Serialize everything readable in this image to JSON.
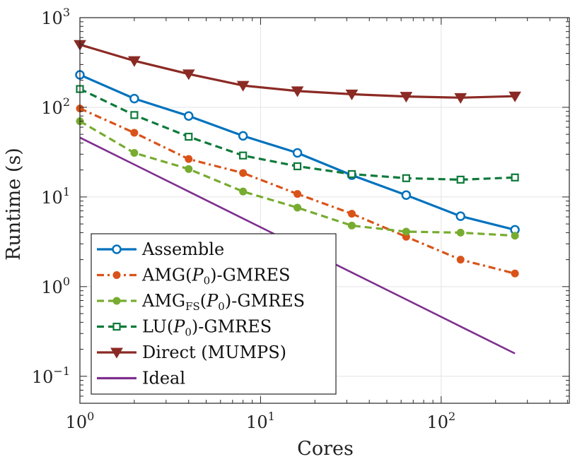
{
  "chart_data": {
    "type": "line",
    "xscale": "log",
    "yscale": "log",
    "xlabel": "Cores",
    "ylabel": "Runtime (s)",
    "xlim": [
      1,
      512
    ],
    "ylim": [
      0.05,
      1000
    ],
    "grid": true,
    "legend_position": "bottom-left",
    "x_ticks": [
      {
        "value": 1,
        "base": "10",
        "exp": "0"
      },
      {
        "value": 10,
        "base": "10",
        "exp": "1"
      },
      {
        "value": 100,
        "base": "10",
        "exp": "2"
      }
    ],
    "y_ticks": [
      {
        "value": 0.1,
        "base": "10",
        "exp": "−1"
      },
      {
        "value": 1,
        "base": "10",
        "exp": "0"
      },
      {
        "value": 10,
        "base": "10",
        "exp": "1"
      },
      {
        "value": 100,
        "base": "10",
        "exp": "2"
      },
      {
        "value": 1000,
        "base": "10",
        "exp": "3"
      }
    ],
    "x": [
      1,
      2,
      4,
      8,
      16,
      32,
      64,
      128,
      256
    ],
    "series": [
      {
        "name": "Assemble",
        "label_parts": [
          "Assemble"
        ],
        "color": "#0072BD",
        "dash": "solid",
        "marker": "circle-open",
        "values": [
          230,
          125,
          80,
          48,
          31,
          17.5,
          10.5,
          6.1,
          4.3
        ]
      },
      {
        "name": "AMG(P0)-GMRES",
        "label_parts": [
          "AMG(",
          "P",
          "0",
          ")-GMRES"
        ],
        "color": "#D95319",
        "dash": "dashdot",
        "marker": "circle-filled",
        "values": [
          97,
          52,
          26.5,
          18.5,
          10.8,
          6.5,
          3.6,
          2.0,
          1.4
        ]
      },
      {
        "name": "AMGFS(P0)-GMRES",
        "label_parts": [
          "AMG",
          "FS",
          "(",
          "P",
          "0",
          ")-GMRES"
        ],
        "color": "#77AC30",
        "dash": "dashed",
        "marker": "circle-filled",
        "values": [
          70,
          31,
          20.5,
          11.5,
          7.6,
          4.8,
          4.1,
          4.0,
          3.7
        ]
      },
      {
        "name": "LU(P0)-GMRES",
        "label_parts": [
          "LU(",
          "P",
          "0",
          ")-GMRES"
        ],
        "color": "#0E7A3A",
        "dash": "dashed",
        "marker": "square-open",
        "values": [
          160,
          82,
          47,
          29,
          22,
          18,
          16.2,
          15.6,
          16.5
        ]
      },
      {
        "name": "Direct (MUMPS)",
        "label_parts": [
          "Direct (MUMPS)"
        ],
        "color": "#8B2A24",
        "dash": "solid",
        "marker": "triangle-down",
        "values": [
          500,
          330,
          235,
          175,
          152,
          140,
          132,
          128,
          133
        ]
      },
      {
        "name": "Ideal",
        "label_parts": [
          "Ideal"
        ],
        "color": "#7E2F8E",
        "dash": "solid",
        "marker": "none",
        "values": [
          46,
          23,
          11.5,
          5.75,
          2.875,
          1.4375,
          0.71875,
          0.359375,
          0.1796875
        ]
      }
    ]
  }
}
